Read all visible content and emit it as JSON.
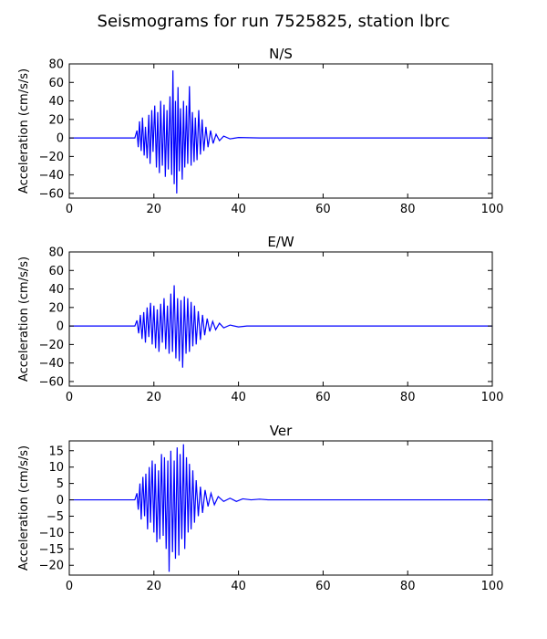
{
  "title": "Seismograms for run 7525825, station lbrc",
  "colors": {
    "trace": "#0000ff",
    "axes": "#000000",
    "background": "#ffffff"
  },
  "chart_data": [
    {
      "type": "line",
      "title": "N/S",
      "xlabel": "",
      "ylabel": "Acceleration (cm/s/s)",
      "xlim": [
        0,
        100
      ],
      "ylim": [
        -65,
        80
      ],
      "xticks": [
        0,
        20,
        40,
        60,
        80,
        100
      ],
      "yticks": [
        -60,
        -40,
        -20,
        0,
        20,
        40,
        60,
        80
      ],
      "grid": false,
      "series": [
        {
          "color": "#0000ff",
          "x": [
            0,
            15.5,
            16.0,
            16.3,
            16.6,
            17.0,
            17.3,
            17.7,
            18.0,
            18.4,
            18.8,
            19.1,
            19.5,
            19.8,
            20.2,
            20.6,
            20.9,
            21.3,
            21.6,
            22.0,
            22.4,
            22.7,
            23.1,
            23.4,
            23.8,
            24.2,
            24.5,
            24.8,
            25.1,
            25.4,
            25.7,
            26.0,
            26.3,
            26.7,
            27.0,
            27.3,
            27.7,
            28.0,
            28.4,
            28.8,
            29.1,
            29.5,
            29.8,
            30.2,
            30.6,
            31.0,
            31.4,
            31.8,
            32.3,
            32.8,
            33.4,
            34.0,
            34.7,
            35.5,
            36.5,
            38.0,
            40.0,
            45.0,
            100
          ],
          "y": [
            0,
            0,
            8,
            -10,
            18,
            -14,
            22,
            -19,
            12,
            -22,
            25,
            -28,
            30,
            -15,
            35,
            -32,
            28,
            -38,
            40,
            -30,
            36,
            -42,
            30,
            -34,
            45,
            -40,
            73,
            -50,
            40,
            -60,
            55,
            -36,
            32,
            -45,
            40,
            -32,
            35,
            -28,
            56,
            -30,
            28,
            -26,
            22,
            -24,
            30,
            -18,
            20,
            -14,
            12,
            -10,
            8,
            -6,
            4,
            -3,
            2,
            -1,
            0.5,
            0,
            0
          ]
        }
      ]
    },
    {
      "type": "line",
      "title": "E/W",
      "xlabel": "",
      "ylabel": "Acceleration (cm/s/s)",
      "xlim": [
        0,
        100
      ],
      "ylim": [
        -65,
        80
      ],
      "xticks": [
        0,
        20,
        40,
        60,
        80,
        100
      ],
      "yticks": [
        -60,
        -40,
        -20,
        0,
        20,
        40,
        60,
        80
      ],
      "grid": false,
      "series": [
        {
          "color": "#0000ff",
          "x": [
            0,
            15.5,
            16.0,
            16.4,
            16.8,
            17.2,
            17.6,
            18.0,
            18.4,
            18.8,
            19.2,
            19.6,
            20.0,
            20.4,
            20.8,
            21.2,
            21.6,
            22.0,
            22.4,
            22.8,
            23.2,
            23.6,
            24.0,
            24.4,
            24.8,
            25.2,
            25.6,
            26.0,
            26.4,
            26.8,
            27.2,
            27.6,
            28.0,
            28.4,
            28.8,
            29.2,
            29.6,
            30.0,
            30.5,
            31.0,
            31.5,
            32.0,
            32.6,
            33.2,
            33.9,
            34.6,
            35.5,
            36.5,
            38.0,
            40.0,
            42.0,
            45.0,
            100
          ],
          "y": [
            0,
            0,
            6,
            -8,
            12,
            -14,
            15,
            -18,
            20,
            -12,
            25,
            -20,
            22,
            -24,
            18,
            -28,
            24,
            -18,
            30,
            -25,
            22,
            -30,
            35,
            -28,
            44,
            -35,
            30,
            -38,
            28,
            -45,
            32,
            -30,
            30,
            -28,
            26,
            -22,
            22,
            -20,
            16,
            -15,
            12,
            -10,
            8,
            -6,
            5,
            -4,
            3,
            -2,
            1,
            -1,
            0,
            0,
            0
          ]
        }
      ]
    },
    {
      "type": "line",
      "title": "Ver",
      "xlabel": "",
      "ylabel": "Acceleration (cm/s/s)",
      "xlim": [
        0,
        100
      ],
      "ylim": [
        -23,
        18
      ],
      "xticks": [
        0,
        20,
        40,
        60,
        80,
        100
      ],
      "yticks": [
        -20,
        -15,
        -10,
        -5,
        0,
        5,
        10,
        15
      ],
      "grid": false,
      "series": [
        {
          "color": "#0000ff",
          "x": [
            0,
            10.0,
            15.5,
            16.0,
            16.3,
            16.7,
            17.0,
            17.4,
            17.8,
            18.1,
            18.5,
            18.9,
            19.2,
            19.6,
            20.0,
            20.3,
            20.7,
            21.1,
            21.4,
            21.8,
            22.2,
            22.5,
            22.9,
            23.3,
            23.6,
            24.0,
            24.4,
            24.8,
            25.1,
            25.5,
            25.9,
            26.2,
            26.6,
            27.0,
            27.3,
            27.7,
            28.1,
            28.4,
            28.8,
            29.2,
            29.6,
            30.0,
            30.5,
            31.0,
            31.5,
            32.1,
            32.8,
            33.5,
            34.3,
            35.2,
            36.5,
            38.0,
            39.5,
            41.0,
            43.0,
            45.0,
            47.0,
            50.0,
            100
          ],
          "y": [
            0,
            0,
            0,
            2,
            -3,
            5,
            -6,
            7,
            -5,
            8,
            -9,
            10,
            -7,
            12,
            -10,
            11,
            -13,
            9,
            -12,
            14,
            -11,
            13,
            -15,
            12,
            -22,
            15,
            -16,
            12,
            -18,
            16,
            -17,
            14,
            -12,
            17,
            -15,
            13,
            -10,
            11,
            -9,
            9,
            -7,
            6,
            -5,
            4,
            -4,
            3,
            -2,
            2,
            -1.5,
            1,
            -0.5,
            0.5,
            -0.5,
            0.3,
            0,
            0.2,
            0,
            0,
            0
          ]
        }
      ]
    }
  ]
}
